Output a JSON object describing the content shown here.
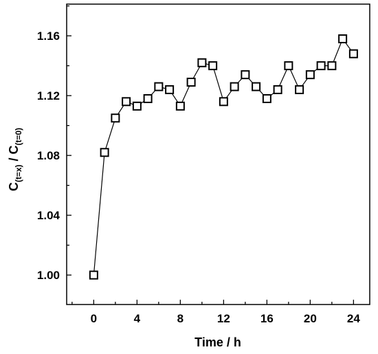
{
  "chart_data": {
    "type": "scatter",
    "title": "",
    "xlabel": "Time / h",
    "ylabel": {
      "c1": "C",
      "sub1": "(t=x)",
      "mid": " / ",
      "c2": "C",
      "sub2": "(t=0)"
    },
    "xlim": [
      -2.5,
      25.5
    ],
    "ylim": [
      0.9803,
      1.1812
    ],
    "x_ticks": [
      0,
      4,
      8,
      12,
      16,
      20,
      24
    ],
    "x_tick_labels": [
      "0",
      "4",
      "8",
      "12",
      "16",
      "20",
      "24"
    ],
    "y_ticks": [
      1.0,
      1.04,
      1.08,
      1.12,
      1.16
    ],
    "y_tick_labels": [
      "1.00",
      "1.04",
      "1.08",
      "1.12",
      "1.16"
    ],
    "grid": false,
    "marker": "open-square",
    "line": true,
    "series": [
      {
        "x": [
          0,
          1,
          2,
          3,
          4,
          5,
          6,
          7,
          8,
          9,
          10,
          11,
          12,
          13,
          14,
          15,
          16,
          17,
          18,
          19,
          20,
          21,
          22,
          23,
          24
        ],
        "y": [
          1.0,
          1.082,
          1.105,
          1.116,
          1.113,
          1.118,
          1.126,
          1.124,
          1.113,
          1.129,
          1.142,
          1.14,
          1.116,
          1.126,
          1.134,
          1.126,
          1.118,
          1.124,
          1.14,
          1.124,
          1.134,
          1.14,
          1.14,
          1.158,
          1.148
        ]
      }
    ]
  }
}
